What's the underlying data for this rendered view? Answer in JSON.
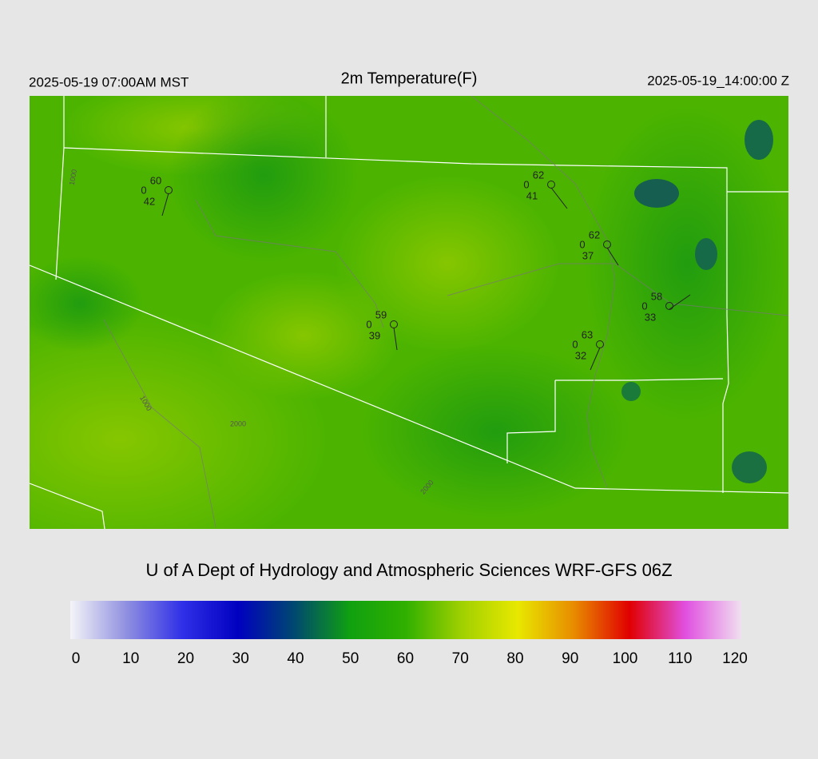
{
  "header": {
    "left": "2025-05-19 07:00AM MST",
    "title": "2m Temperature(F)",
    "right": "2025-05-19_14:00:00 Z"
  },
  "stations": [
    {
      "temp": 60,
      "code": 0,
      "dewpoint": 42
    },
    {
      "temp": 62,
      "code": 0,
      "dewpoint": 41
    },
    {
      "temp": 62,
      "code": 0,
      "dewpoint": 37
    },
    {
      "temp": 58,
      "code": 0,
      "dewpoint": 33
    },
    {
      "temp": 63,
      "code": 0,
      "dewpoint": 32
    },
    {
      "temp": 59,
      "code": 0,
      "dewpoint": 39
    }
  ],
  "contour_labels": [
    1000,
    1000,
    2000,
    2000
  ],
  "credit": "U of A Dept of Hydrology and Atmospheric Sciences WRF-GFS 06Z",
  "colorbar": {
    "ticks": [
      0,
      10,
      20,
      30,
      40,
      50,
      60,
      70,
      80,
      90,
      100,
      110,
      120
    ],
    "colors": [
      "#f4f4f8",
      "#9090e0",
      "#3030e8",
      "#0000c0",
      "#004870",
      "#10a010",
      "#30b000",
      "#a0d000",
      "#e8e800",
      "#e88c00",
      "#e00000",
      "#e050e0",
      "#f0e0f0"
    ]
  }
}
